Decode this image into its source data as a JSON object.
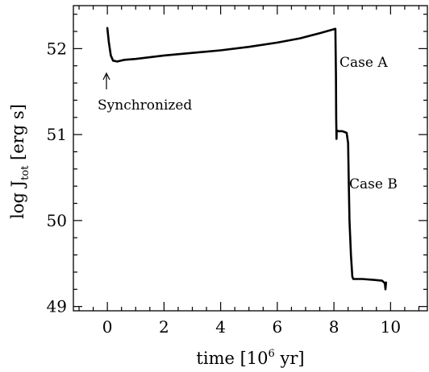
{
  "chart_data": {
    "type": "line",
    "title": "",
    "xlabel": {
      "main": "time [10",
      "sup": "6",
      "tail": " yr]"
    },
    "ylabel": {
      "main": "log J",
      "sub": "tot",
      "tail": " [erg s]"
    },
    "xlim": [
      -1.2,
      11.3
    ],
    "ylim": [
      48.95,
      52.5
    ],
    "x_ticks": [
      0,
      2,
      4,
      6,
      8,
      10
    ],
    "x_tick_labels": [
      "0",
      "2",
      "4",
      "6",
      "8",
      "10"
    ],
    "y_ticks": [
      49,
      50,
      51,
      52
    ],
    "y_tick_labels": [
      "49",
      "50",
      "51",
      "52"
    ],
    "grid": false,
    "series": [
      {
        "x": [
          0.0,
          0.05,
          0.12,
          0.2,
          0.35,
          0.6,
          1.0,
          2.0,
          3.0,
          4.0,
          5.0,
          6.0,
          6.8,
          7.5,
          8.05,
          8.07,
          8.08,
          8.09,
          8.1,
          8.15,
          8.3,
          8.45,
          8.5,
          8.52,
          8.55,
          8.6,
          8.65,
          8.68,
          9.0,
          9.4,
          9.7,
          9.8,
          9.82,
          9.84
        ],
        "y": [
          52.24,
          52.08,
          51.92,
          51.86,
          51.85,
          51.87,
          51.88,
          51.92,
          51.95,
          51.98,
          52.02,
          52.07,
          52.12,
          52.18,
          52.23,
          51.7,
          51.2,
          50.95,
          51.05,
          51.04,
          51.04,
          51.02,
          50.9,
          50.5,
          50.0,
          49.6,
          49.35,
          49.32,
          49.32,
          49.31,
          49.3,
          49.27,
          49.2,
          49.28
        ]
      }
    ],
    "annotations": {
      "synchronized": "Synchronized",
      "case_a": "Case A",
      "case_b": "Case B"
    }
  }
}
